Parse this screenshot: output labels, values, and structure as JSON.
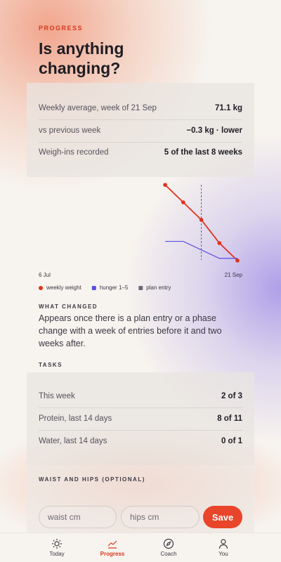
{
  "header": {
    "eyebrow": "PROGRESS",
    "title": "Is anything changing?"
  },
  "summary": {
    "rows": [
      [
        "Weekly average, week of 21 Sep",
        "71.1 kg"
      ],
      [
        "vs previous week",
        "−0.3 kg · lower"
      ],
      [
        "Weigh-ins recorded",
        "5 of the last 8 weeks"
      ]
    ]
  },
  "chart_data": {
    "type": "line",
    "x": [
      "24 Aug",
      "31 Aug",
      "7 Sep",
      "14 Sep",
      "21 Sep"
    ],
    "xlim": [
      "6 Jul",
      "21 Sep"
    ],
    "xticks": [
      "6 Jul",
      "21 Sep"
    ],
    "ylim": [
      71.05,
      72.45
    ],
    "y2lim": [
      0.7,
      5.5
    ],
    "series": [
      {
        "name": "weekly weight",
        "color": "#e2321b",
        "values": [
          72.4,
          72.1,
          71.8,
          71.4,
          71.1
        ]
      },
      {
        "name": "hunger 1–5",
        "color": "#5b4fe0",
        "axis": "y2",
        "values": [
          2,
          2,
          1.5,
          1,
          1
        ]
      }
    ],
    "markers": [
      {
        "name": "plan entry",
        "color": "#6b6a78",
        "x": "7 Sep"
      }
    ]
  },
  "what_changed": {
    "heading": "WHAT CHANGED",
    "text": "Appears once there is a plan entry or a phase change with a week of entries before it and two weeks after."
  },
  "tasks": {
    "heading": "TASKS",
    "rows": [
      [
        "This week",
        "2 of 3"
      ],
      [
        "Protein, last 14 days",
        "8 of 11"
      ],
      [
        "Water, last 14 days",
        "0 of 1"
      ]
    ]
  },
  "measurements": {
    "heading": "WAIST AND HIPS (OPTIONAL)",
    "inputs": [
      "waist cm",
      "hips cm"
    ],
    "button": "Save"
  },
  "nav": {
    "items": [
      "Today",
      "Progress",
      "Coach",
      "You"
    ],
    "active": 1
  }
}
